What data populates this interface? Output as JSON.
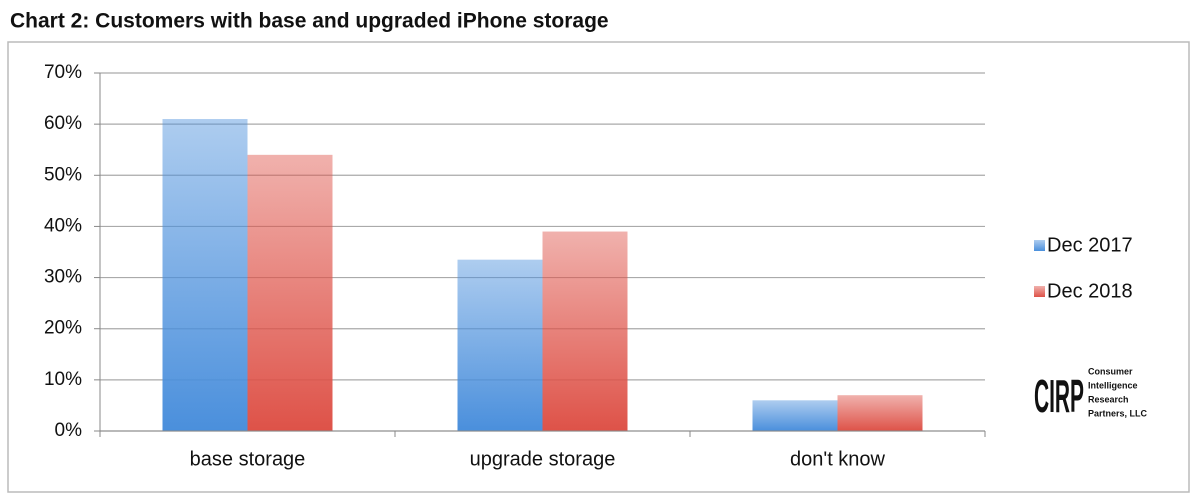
{
  "chart_data": {
    "type": "bar",
    "title": "Chart 2: Customers with base and upgraded iPhone storage",
    "categories": [
      "base storage",
      "upgrade storage",
      "don't know"
    ],
    "series": [
      {
        "name": "Dec 2017",
        "color": "#4a8fdc",
        "values": [
          61,
          33.5,
          6
        ]
      },
      {
        "name": "Dec 2018",
        "color": "#de5248",
        "values": [
          54,
          39,
          7
        ]
      }
    ],
    "ylim": [
      0,
      70
    ],
    "yticks": [
      {
        "value": 0,
        "label": "0%"
      },
      {
        "value": 10,
        "label": "10%"
      },
      {
        "value": 20,
        "label": "20%"
      },
      {
        "value": 30,
        "label": "30%"
      },
      {
        "value": 40,
        "label": "40%"
      },
      {
        "value": 50,
        "label": "50%"
      },
      {
        "value": 60,
        "label": "60%"
      },
      {
        "value": 70,
        "label": "70%"
      }
    ],
    "grid": true,
    "legend": "right",
    "logo": {
      "mark": "CIRP",
      "lines": [
        "Consumer",
        "Intelligence",
        "Research",
        "Partners, LLC"
      ]
    }
  }
}
